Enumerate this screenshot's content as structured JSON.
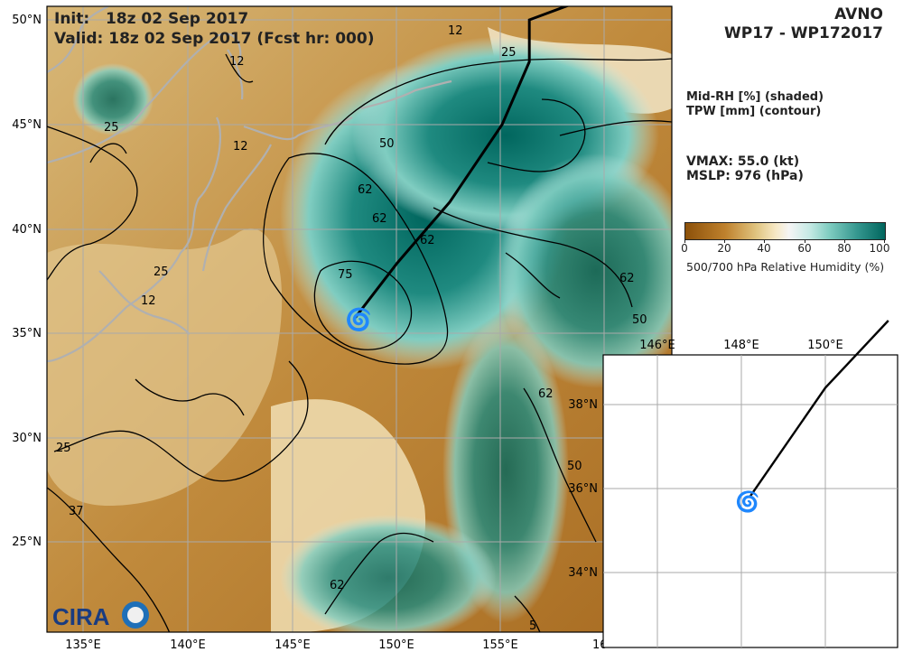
{
  "header": {
    "init_label": "Init:",
    "init_value": "18z 02 Sep 2017",
    "valid_label": "Valid:",
    "valid_value": "18z 02 Sep 2017 (Fcst hr: 000)",
    "model": "AVNO",
    "storm_id": "WP17 - WP172017"
  },
  "legend": {
    "shaded": "Mid-RH [%] (shaded)",
    "contour": "TPW [mm] (contour)",
    "vmax_label": "VMAX:",
    "vmax_value": "55.0 (kt)",
    "mslp_label": "MSLP:",
    "mslp_value": "976 (hPa)"
  },
  "colorbar": {
    "title": "500/700 hPa Relative Humidity (%)",
    "ticks": [
      "0",
      "20",
      "40",
      "60",
      "80",
      "100"
    ],
    "colors": [
      "#8c510a",
      "#bf812d",
      "#dfc27d",
      "#f6e8c3",
      "#f5f5f5",
      "#c7eae5",
      "#80cdc1",
      "#35978f",
      "#01665e"
    ]
  },
  "main_map": {
    "lon_labels": [
      "135°E",
      "140°E",
      "145°E",
      "150°E",
      "155°E",
      "16"
    ],
    "lat_labels": [
      "50°N",
      "45°N",
      "40°N",
      "35°N",
      "30°N",
      "25°N"
    ],
    "contour_labels": [
      "12",
      "25",
      "12",
      "25",
      "12",
      "50",
      "62",
      "62",
      "62",
      "75",
      "25",
      "12",
      "25",
      "37",
      "62",
      "62",
      "62",
      "50",
      "50",
      "5"
    ],
    "track_latlon": [
      [
        35.8,
        148.0
      ],
      [
        38.4,
        150.0
      ],
      [
        41.3,
        152.5
      ],
      [
        45.0,
        155.0
      ],
      [
        48.0,
        156.3
      ],
      [
        50.0,
        156.3
      ],
      [
        51.0,
        159.0
      ]
    ]
  },
  "inset_map": {
    "lon_labels": [
      "146°E",
      "148°E",
      "150°E"
    ],
    "lat_labels": [
      "38°N",
      "36°N",
      "34°N"
    ],
    "track_latlon": [
      [
        35.8,
        148.2
      ],
      [
        38.4,
        150.0
      ],
      [
        40.0,
        151.5
      ]
    ]
  },
  "logo": {
    "text": "CIRA"
  }
}
